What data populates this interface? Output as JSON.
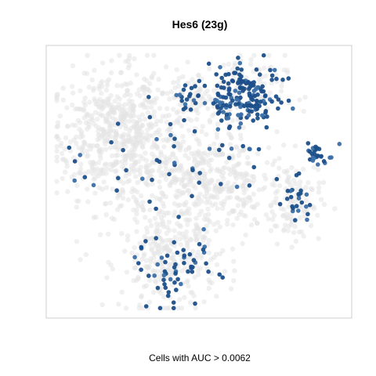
{
  "chart_data": {
    "type": "scatter",
    "title": "Hes6 (23g)",
    "xlabel": "Cells with AUC > 0.0062",
    "ylabel": "",
    "grid": false,
    "legend": "none",
    "colors": {
      "background_cells": "#e3e3e3",
      "positive_cells": "#1c4f8a",
      "positive_cells_alt": "#3a6fa8"
    },
    "xlim": [
      0,
      100
    ],
    "ylim": [
      0,
      100
    ],
    "background_clusters": [
      {
        "cx": 18,
        "cy": 68,
        "sx": 9,
        "sy": 12,
        "n": 360
      },
      {
        "cx": 30,
        "cy": 63,
        "sx": 8,
        "sy": 16,
        "n": 300
      },
      {
        "cx": 44,
        "cy": 50,
        "sx": 6,
        "sy": 13,
        "n": 170
      },
      {
        "cx": 55,
        "cy": 50,
        "sx": 6,
        "sy": 10,
        "n": 140
      },
      {
        "cx": 64,
        "cy": 48,
        "sx": 5,
        "sy": 9,
        "n": 90
      },
      {
        "cx": 40,
        "cy": 19,
        "sx": 8,
        "sy": 9,
        "n": 260
      },
      {
        "cx": 81,
        "cy": 43,
        "sx": 5,
        "sy": 8,
        "n": 120
      },
      {
        "cx": 63,
        "cy": 84,
        "sx": 8,
        "sy": 7,
        "n": 130
      },
      {
        "cx": 47,
        "cy": 82,
        "sx": 5,
        "sy": 5,
        "n": 60
      }
    ],
    "positive_clusters": [
      {
        "cx": 66,
        "cy": 82,
        "sx": 6,
        "sy": 6,
        "n": 170
      },
      {
        "cx": 48,
        "cy": 82,
        "sx": 3,
        "sy": 4,
        "n": 22
      },
      {
        "cx": 90,
        "cy": 60,
        "sx": 3,
        "sy": 2.5,
        "n": 26
      },
      {
        "cx": 82,
        "cy": 44,
        "sx": 3,
        "sy": 6,
        "n": 26
      },
      {
        "cx": 42,
        "cy": 17,
        "sx": 6.5,
        "sy": 6,
        "n": 58
      },
      {
        "cx": 23,
        "cy": 62,
        "sx": 10,
        "sy": 14,
        "n": 22
      },
      {
        "cx": 46,
        "cy": 52,
        "sx": 6,
        "sy": 10,
        "n": 16
      },
      {
        "cx": 66,
        "cy": 56,
        "sx": 5,
        "sy": 8,
        "n": 14
      }
    ]
  }
}
